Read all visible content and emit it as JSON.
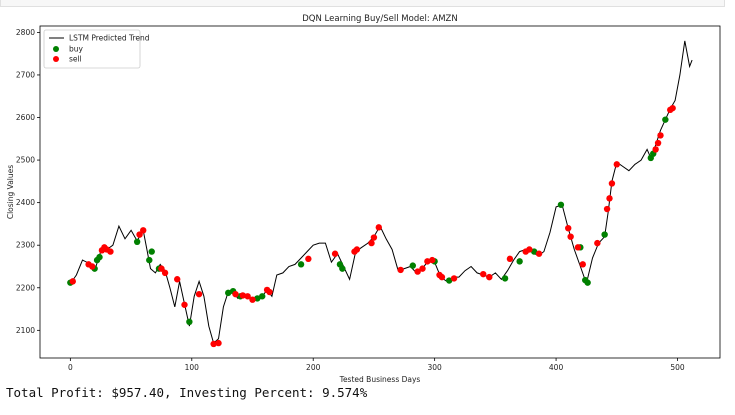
{
  "chart_data": {
    "type": "line",
    "title": "DQN Learning Buy/Sell Model: AMZN",
    "xlabel": "Tested Business Days",
    "ylabel": "Closing Values",
    "xlim": [
      -25,
      535
    ],
    "ylim": [
      2035,
      2815
    ],
    "x_ticks": [
      0,
      100,
      200,
      300,
      400,
      500
    ],
    "y_ticks": [
      2100,
      2200,
      2300,
      2400,
      2500,
      2600,
      2700,
      2800
    ],
    "grid": false,
    "legend_position": "top-left",
    "colors": {
      "line": "#000000",
      "buy": "#008000",
      "sell": "#ff0000"
    },
    "series": [
      {
        "name": "LSTM Predicted Trend",
        "kind": "line",
        "points": [
          [
            0,
            2210
          ],
          [
            5,
            2230
          ],
          [
            10,
            2265
          ],
          [
            15,
            2258
          ],
          [
            20,
            2240
          ],
          [
            25,
            2285
          ],
          [
            30,
            2290
          ],
          [
            35,
            2300
          ],
          [
            40,
            2345
          ],
          [
            45,
            2315
          ],
          [
            50,
            2335
          ],
          [
            55,
            2310
          ],
          [
            60,
            2335
          ],
          [
            63,
            2290
          ],
          [
            66,
            2245
          ],
          [
            70,
            2235
          ],
          [
            74,
            2255
          ],
          [
            78,
            2240
          ],
          [
            82,
            2200
          ],
          [
            86,
            2155
          ],
          [
            90,
            2215
          ],
          [
            94,
            2162
          ],
          [
            98,
            2110
          ],
          [
            102,
            2180
          ],
          [
            106,
            2215
          ],
          [
            110,
            2180
          ],
          [
            114,
            2110
          ],
          [
            118,
            2070
          ],
          [
            122,
            2080
          ],
          [
            126,
            2155
          ],
          [
            130,
            2190
          ],
          [
            134,
            2190
          ],
          [
            138,
            2175
          ],
          [
            142,
            2185
          ],
          [
            146,
            2180
          ],
          [
            150,
            2170
          ],
          [
            154,
            2175
          ],
          [
            158,
            2180
          ],
          [
            162,
            2195
          ],
          [
            166,
            2180
          ],
          [
            170,
            2230
          ],
          [
            175,
            2235
          ],
          [
            180,
            2250
          ],
          [
            185,
            2255
          ],
          [
            190,
            2270
          ],
          [
            195,
            2285
          ],
          [
            200,
            2300
          ],
          [
            205,
            2305
          ],
          [
            210,
            2305
          ],
          [
            215,
            2260
          ],
          [
            220,
            2280
          ],
          [
            225,
            2250
          ],
          [
            230,
            2220
          ],
          [
            235,
            2285
          ],
          [
            240,
            2295
          ],
          [
            245,
            2305
          ],
          [
            250,
            2320
          ],
          [
            255,
            2345
          ],
          [
            260,
            2315
          ],
          [
            265,
            2290
          ],
          [
            270,
            2240
          ],
          [
            275,
            2245
          ],
          [
            280,
            2250
          ],
          [
            285,
            2235
          ],
          [
            290,
            2245
          ],
          [
            295,
            2265
          ],
          [
            300,
            2260
          ],
          [
            305,
            2225
          ],
          [
            310,
            2215
          ],
          [
            315,
            2225
          ],
          [
            320,
            2225
          ],
          [
            325,
            2240
          ],
          [
            330,
            2250
          ],
          [
            335,
            2235
          ],
          [
            340,
            2230
          ],
          [
            345,
            2225
          ],
          [
            350,
            2235
          ],
          [
            355,
            2220
          ],
          [
            360,
            2240
          ],
          [
            365,
            2265
          ],
          [
            370,
            2285
          ],
          [
            375,
            2290
          ],
          [
            380,
            2285
          ],
          [
            385,
            2275
          ],
          [
            390,
            2285
          ],
          [
            395,
            2330
          ],
          [
            400,
            2390
          ],
          [
            405,
            2395
          ],
          [
            410,
            2340
          ],
          [
            415,
            2290
          ],
          [
            420,
            2250
          ],
          [
            425,
            2210
          ],
          [
            430,
            2270
          ],
          [
            435,
            2305
          ],
          [
            440,
            2320
          ],
          [
            443,
            2380
          ],
          [
            446,
            2450
          ],
          [
            450,
            2495
          ],
          [
            455,
            2485
          ],
          [
            460,
            2475
          ],
          [
            465,
            2490
          ],
          [
            470,
            2500
          ],
          [
            475,
            2525
          ],
          [
            478,
            2505
          ],
          [
            482,
            2535
          ],
          [
            486,
            2570
          ],
          [
            490,
            2595
          ],
          [
            494,
            2620
          ],
          [
            498,
            2640
          ],
          [
            502,
            2700
          ],
          [
            506,
            2780
          ],
          [
            510,
            2720
          ],
          [
            512,
            2735
          ]
        ]
      },
      {
        "name": "buy",
        "kind": "scatter",
        "points": [
          [
            0,
            2212
          ],
          [
            20,
            2245
          ],
          [
            22,
            2265
          ],
          [
            24,
            2272
          ],
          [
            55,
            2308
          ],
          [
            65,
            2265
          ],
          [
            67,
            2285
          ],
          [
            73,
            2245
          ],
          [
            98,
            2120
          ],
          [
            130,
            2188
          ],
          [
            134,
            2192
          ],
          [
            140,
            2180
          ],
          [
            154,
            2175
          ],
          [
            158,
            2180
          ],
          [
            190,
            2255
          ],
          [
            222,
            2255
          ],
          [
            224,
            2245
          ],
          [
            282,
            2252
          ],
          [
            300,
            2262
          ],
          [
            312,
            2217
          ],
          [
            358,
            2222
          ],
          [
            370,
            2262
          ],
          [
            382,
            2285
          ],
          [
            404,
            2395
          ],
          [
            420,
            2295
          ],
          [
            424,
            2218
          ],
          [
            426,
            2212
          ],
          [
            440,
            2325
          ],
          [
            478,
            2505
          ],
          [
            480,
            2515
          ],
          [
            490,
            2595
          ]
        ]
      },
      {
        "name": "sell",
        "kind": "scatter",
        "points": [
          [
            2,
            2215
          ],
          [
            15,
            2255
          ],
          [
            18,
            2250
          ],
          [
            26,
            2288
          ],
          [
            28,
            2295
          ],
          [
            30,
            2290
          ],
          [
            33,
            2285
          ],
          [
            57,
            2325
          ],
          [
            60,
            2335
          ],
          [
            75,
            2245
          ],
          [
            78,
            2235
          ],
          [
            88,
            2220
          ],
          [
            94,
            2160
          ],
          [
            106,
            2185
          ],
          [
            118,
            2068
          ],
          [
            122,
            2070
          ],
          [
            136,
            2185
          ],
          [
            142,
            2182
          ],
          [
            146,
            2180
          ],
          [
            150,
            2172
          ],
          [
            162,
            2195
          ],
          [
            164,
            2190
          ],
          [
            196,
            2268
          ],
          [
            218,
            2280
          ],
          [
            234,
            2285
          ],
          [
            236,
            2290
          ],
          [
            248,
            2305
          ],
          [
            250,
            2318
          ],
          [
            254,
            2342
          ],
          [
            272,
            2242
          ],
          [
            286,
            2238
          ],
          [
            290,
            2245
          ],
          [
            294,
            2262
          ],
          [
            298,
            2265
          ],
          [
            304,
            2230
          ],
          [
            306,
            2225
          ],
          [
            316,
            2222
          ],
          [
            340,
            2232
          ],
          [
            345,
            2225
          ],
          [
            362,
            2268
          ],
          [
            375,
            2285
          ],
          [
            378,
            2290
          ],
          [
            386,
            2280
          ],
          [
            410,
            2340
          ],
          [
            412,
            2320
          ],
          [
            418,
            2295
          ],
          [
            422,
            2255
          ],
          [
            434,
            2305
          ],
          [
            442,
            2385
          ],
          [
            444,
            2410
          ],
          [
            446,
            2445
          ],
          [
            450,
            2490
          ],
          [
            482,
            2525
          ],
          [
            484,
            2540
          ],
          [
            486,
            2558
          ],
          [
            494,
            2618
          ],
          [
            496,
            2622
          ]
        ]
      }
    ]
  },
  "output": {
    "text": "Total Profit: $957.40, Investing Percent: 9.574%"
  }
}
